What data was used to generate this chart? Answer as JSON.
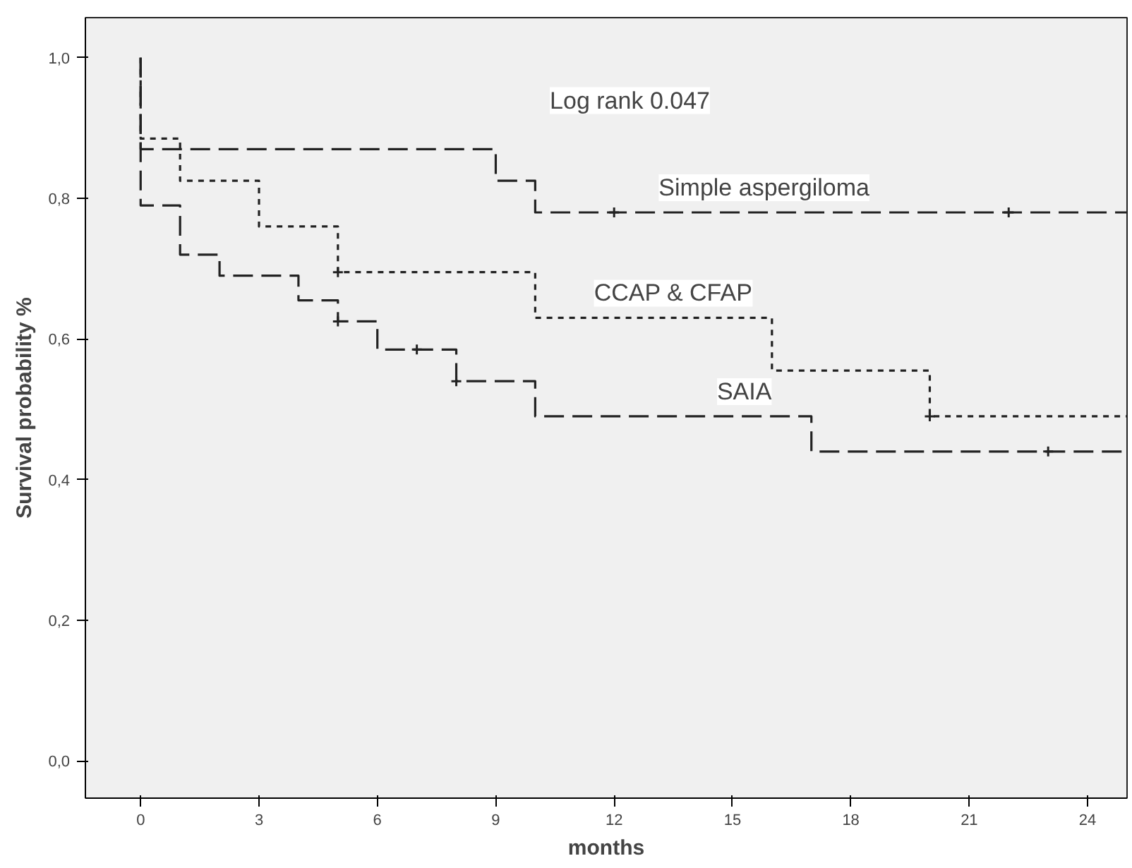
{
  "chart_data": {
    "type": "step",
    "xlabel": "months",
    "ylabel": "Survival probability %",
    "xlim": [
      -1.4,
      25
    ],
    "ylim": [
      -0.053,
      1.057
    ],
    "xticks": [
      0,
      3,
      6,
      9,
      12,
      15,
      18,
      21,
      24
    ],
    "yticks": [
      {
        "value": 0,
        "label": "0,0"
      },
      {
        "value": 0.2,
        "label": "0,2"
      },
      {
        "value": 0.4,
        "label": "0,4"
      },
      {
        "value": 0.6,
        "label": "0,6"
      },
      {
        "value": 0.8,
        "label": "0,8"
      },
      {
        "value": 1.0,
        "label": "1,0"
      }
    ],
    "grid": false,
    "series": [
      {
        "color": "#222222",
        "line_style": "dashed",
        "x": [
          0,
          0,
          9,
          10,
          25
        ],
        "values": [
          1.0,
          0.87,
          0.825,
          0.78,
          0.78
        ]
      },
      {
        "color": "#222222",
        "line_style": "dotted",
        "x": [
          0,
          0,
          1,
          3,
          5,
          10,
          16,
          20,
          25
        ],
        "values": [
          1.0,
          0.885,
          0.825,
          0.76,
          0.695,
          0.63,
          0.555,
          0.49,
          0.49
        ]
      },
      {
        "color": "#222222",
        "line_style": "dashed",
        "x": [
          0,
          0,
          1,
          2,
          4,
          5,
          6,
          8,
          10,
          17,
          25
        ],
        "values": [
          1.0,
          0.79,
          0.72,
          0.69,
          0.655,
          0.625,
          0.585,
          0.54,
          0.49,
          0.44,
          0.44
        ]
      },
      {
        "type": "scatter",
        "color": "#222222",
        "marker": "cross",
        "x": [
          12,
          22,
          5,
          20,
          5,
          7,
          8,
          23
        ],
        "values": [
          0.78,
          0.78,
          0.695,
          0.49,
          0.625,
          0.585,
          0.54,
          0.44
        ]
      }
    ],
    "annotations": [
      "Log rank 0.047",
      {
        "text": "Simple aspergiloma",
        "x": 15.8,
        "y": 0.78
      },
      {
        "text": "CCAP & CFAP",
        "x": 13.5,
        "y": 0.63
      },
      {
        "text": "SAIA",
        "x": 15.3,
        "y": 0.49
      }
    ]
  }
}
